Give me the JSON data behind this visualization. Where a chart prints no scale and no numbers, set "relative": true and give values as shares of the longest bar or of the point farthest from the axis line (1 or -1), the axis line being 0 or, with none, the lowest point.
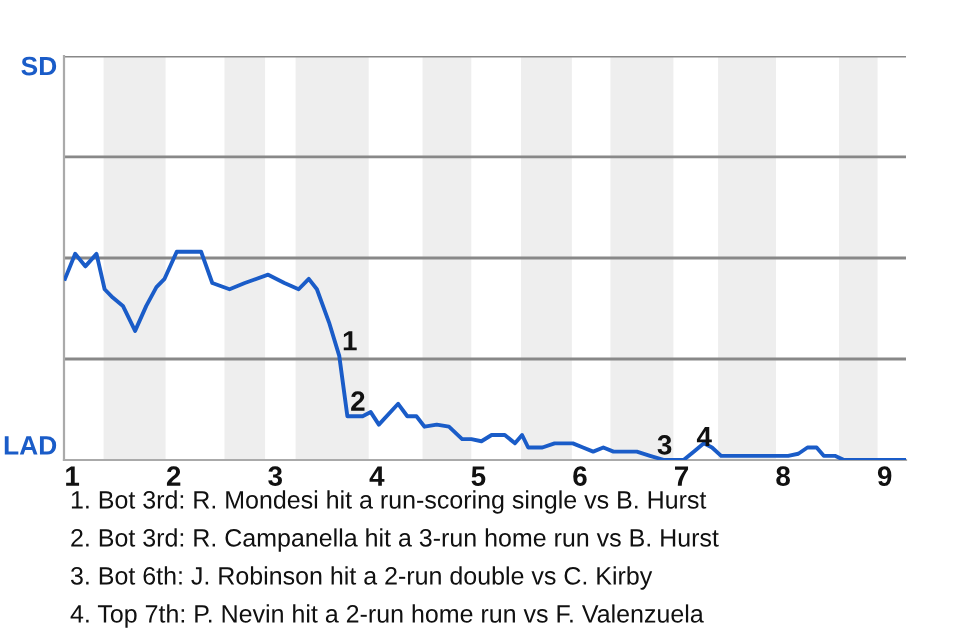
{
  "chart_data": {
    "type": "line",
    "relative": true,
    "x": [
      0.93,
      1.03,
      1.13,
      1.24,
      1.32,
      1.4,
      1.5,
      1.62,
      1.73,
      1.83,
      1.91,
      2.03,
      2.27,
      2.38,
      2.55,
      2.7,
      2.93,
      3.09,
      3.23,
      3.33,
      3.41,
      3.53,
      3.63,
      3.71,
      3.86,
      3.94,
      4.02,
      4.21,
      4.3,
      4.39,
      4.47,
      4.59,
      4.71,
      4.84,
      4.93,
      5.03,
      5.13,
      5.26,
      5.36,
      5.43,
      5.49,
      5.63,
      5.75,
      5.93,
      6.03,
      6.13,
      6.23,
      6.33,
      6.56,
      6.69,
      6.83,
      7.02,
      7.12,
      7.22,
      7.3,
      7.39,
      7.54,
      7.6,
      7.69,
      7.78,
      7.96,
      8.05,
      8.15,
      8.24,
      8.33,
      8.4,
      8.51,
      8.6,
      8.81,
      8.9,
      8.99,
      9.08,
      9.21
    ],
    "series": [
      {
        "color": "#1a5cc8",
        "values": [
          0.87,
          0.99,
          0.93,
          0.99,
          0.82,
          0.78,
          0.74,
          0.62,
          0.74,
          0.83,
          0.87,
          1,
          1,
          0.85,
          0.82,
          0.85,
          0.89,
          0.85,
          0.82,
          0.87,
          0.82,
          0.66,
          0.5,
          0.21,
          0.21,
          0.23,
          0.17,
          0.27,
          0.21,
          0.21,
          0.16,
          0.17,
          0.16,
          0.1,
          0.1,
          0.09,
          0.12,
          0.12,
          0.08,
          0.12,
          0.06,
          0.06,
          0.08,
          0.08,
          0.06,
          0.04,
          0.06,
          0.04,
          0.04,
          0.02,
          0,
          0,
          0.04,
          0.08,
          0.06,
          0.02,
          0.02,
          0.02,
          0.02,
          0.02,
          0.02,
          0.02,
          0.03,
          0.06,
          0.06,
          0.02,
          0.02,
          0,
          0,
          0,
          0,
          0,
          0
        ]
      }
    ],
    "xlim": [
      0.92,
      9.21
    ],
    "xticks": [
      1,
      2,
      3,
      4,
      5,
      6,
      7,
      8,
      9
    ],
    "marker": "none",
    "line_style": "solid",
    "ref_lines": [
      {
        "axis": "y",
        "value": 0.485,
        "color": "#888888"
      },
      {
        "axis": "y",
        "value": 0.97,
        "color": "#888888"
      },
      {
        "axis": "y",
        "value": 1.456,
        "color": "#888888"
      },
      {
        "axis": "y",
        "value": 1.94,
        "color": "#888888"
      }
    ],
    "bands": [
      {
        "axis": "x",
        "from": 1.31,
        "to": 1.92,
        "color": "#eeeeee"
      },
      {
        "axis": "x",
        "from": 2.5,
        "to": 2.9,
        "color": "#eeeeee"
      },
      {
        "axis": "x",
        "from": 3.2,
        "to": 3.92,
        "color": "#eeeeee"
      },
      {
        "axis": "x",
        "from": 4.45,
        "to": 4.93,
        "color": "#eeeeee"
      },
      {
        "axis": "x",
        "from": 5.42,
        "to": 5.92,
        "color": "#eeeeee"
      },
      {
        "axis": "x",
        "from": 6.3,
        "to": 6.92,
        "color": "#eeeeee"
      },
      {
        "axis": "x",
        "from": 7.36,
        "to": 7.93,
        "color": "#eeeeee"
      },
      {
        "axis": "x",
        "from": 8.55,
        "to": 8.93,
        "color": "#eeeeee"
      }
    ],
    "annotations": [
      "SD",
      "LAD",
      {
        "text": "1",
        "x": 3.63,
        "y": 0.5
      },
      {
        "text": "2",
        "x": 3.71,
        "y": 0.21
      },
      {
        "text": "3",
        "x": 6.73,
        "y": 0
      },
      {
        "text": "4",
        "x": 7.12,
        "y": 0.04
      },
      "1. Bot 3rd: R. Mondesi hit a run-scoring single vs B. Hurst",
      "2. Bot 3rd: R. Campanella hit a 3-run home run vs B. Hurst",
      "3. Bot 6th: J. Robinson hit a 2-run double vs C. Kirby",
      "4. Top 7th: P. Nevin hit a 2-run home run vs F. Valenzuela"
    ]
  }
}
